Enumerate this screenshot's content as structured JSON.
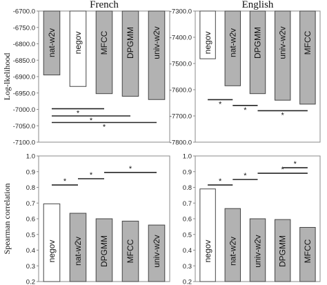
{
  "chart_data": [
    {
      "type": "bar",
      "title": "French",
      "ylabel": "Log-lkelihood",
      "ylim": [
        -7100,
        -6700
      ],
      "yticks": [
        -6700,
        -6750,
        -6800,
        -6850,
        -6900,
        -6950,
        -7000,
        -7050,
        -7100
      ],
      "orientation": "hanging-from-top",
      "categories": [
        "nat-w2v",
        "negov",
        "MFCC",
        "DPGMM",
        "univ-w2v"
      ],
      "values": [
        -6895,
        -6930,
        -6952,
        -6960,
        -6970
      ],
      "bar_colors": [
        "#b2b2b2",
        "#ffffff",
        "#b2b2b2",
        "#b2b2b2",
        "#b2b2b2"
      ],
      "significance": [
        {
          "from": 0,
          "to": 2,
          "value": -6998,
          "label": "*"
        },
        {
          "from": 0,
          "to": 3,
          "value": -7020,
          "label": "*"
        },
        {
          "from": 0,
          "to": 4,
          "value": -7040,
          "label": "*"
        }
      ]
    },
    {
      "type": "bar",
      "title": "English",
      "ylabel": "",
      "ylim": [
        -7800,
        -7300
      ],
      "yticks": [
        -7300,
        -7400,
        -7500,
        -7600,
        -7700,
        -7800
      ],
      "orientation": "hanging-from-top",
      "categories": [
        "negov",
        "nat-w2v",
        "DPGMM",
        "univ-w2v",
        "MFCC"
      ],
      "values": [
        -7482,
        -7585,
        -7615,
        -7640,
        -7655
      ],
      "bar_colors": [
        "#ffffff",
        "#b2b2b2",
        "#b2b2b2",
        "#b2b2b2",
        "#b2b2b2"
      ],
      "significance": [
        {
          "from": 0,
          "to": 1,
          "value": -7638,
          "label": "*"
        },
        {
          "from": 1,
          "to": 2,
          "value": -7660,
          "label": "*"
        },
        {
          "from": 2,
          "to": 4,
          "value": -7680,
          "label": "*"
        }
      ]
    },
    {
      "type": "bar",
      "title": "",
      "ylabel": "Spearman correlation",
      "ylim": [
        0.2,
        1.0
      ],
      "yticks": [
        1.0,
        0.9,
        0.8,
        0.7,
        0.6,
        0.5,
        0.4,
        0.3,
        0.2
      ],
      "orientation": "standard",
      "categories": [
        "negov",
        "nat-w2v",
        "DPGMM",
        "MFCC",
        "univ-w2v"
      ],
      "values": [
        0.695,
        0.635,
        0.6,
        0.585,
        0.56
      ],
      "bar_colors": [
        "#ffffff",
        "#b2b2b2",
        "#b2b2b2",
        "#b2b2b2",
        "#b2b2b2"
      ],
      "significance": [
        {
          "from": 0,
          "to": 1,
          "value": 0.815,
          "label": "*"
        },
        {
          "from": 1,
          "to": 2,
          "value": 0.855,
          "label": "*"
        },
        {
          "from": 2,
          "to": 4,
          "value": 0.895,
          "label": "*"
        }
      ]
    },
    {
      "type": "bar",
      "title": "",
      "ylabel": "",
      "ylim": [
        0.2,
        1.0
      ],
      "yticks": [
        1.0,
        0.9,
        0.8,
        0.7,
        0.6,
        0.5,
        0.4,
        0.3,
        0.2
      ],
      "orientation": "standard",
      "categories": [
        "negov",
        "nat-w2v",
        "univ-w2v",
        "DPGMM",
        "MFCC"
      ],
      "values": [
        0.79,
        0.665,
        0.6,
        0.595,
        0.545
      ],
      "bar_colors": [
        "#ffffff",
        "#b2b2b2",
        "#b2b2b2",
        "#b2b2b2",
        "#b2b2b2"
      ],
      "significance": [
        {
          "from": 0,
          "to": 1,
          "value": 0.815,
          "label": "*"
        },
        {
          "from": 1,
          "to": 2,
          "value": 0.85,
          "label": "*"
        },
        {
          "from": 2,
          "to": 4,
          "value": 0.89,
          "label": "*"
        },
        {
          "from": 3,
          "to": 4,
          "value": 0.925,
          "label": "*"
        }
      ]
    }
  ]
}
